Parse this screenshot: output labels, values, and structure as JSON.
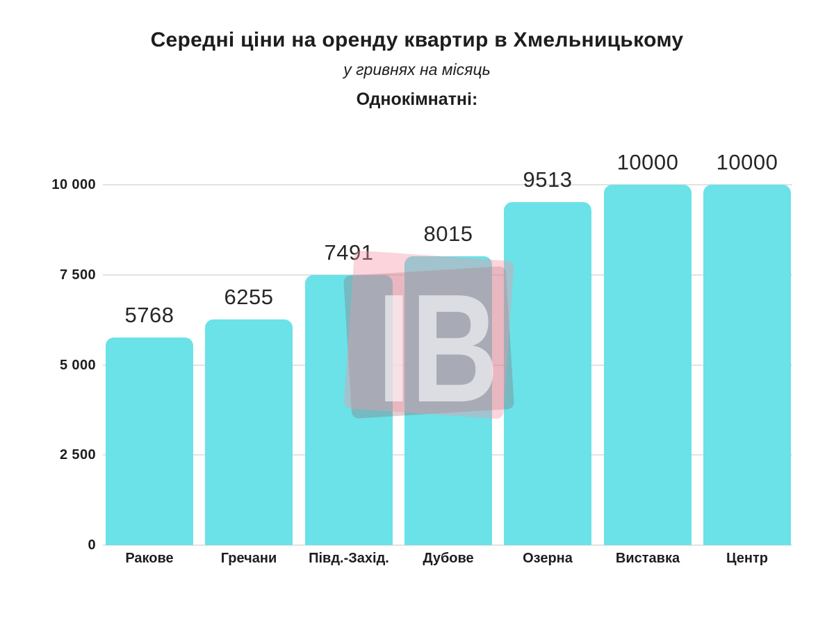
{
  "header": {
    "title": "Середні ціни на оренду квартир в Хмельницькому",
    "subtitle": "у гривнях на місяць",
    "group_label": "Однокімнатні:"
  },
  "chart_data": {
    "type": "bar",
    "title": "Середні ціни на оренду квартир в Хмельницькому",
    "subtitle": "у гривнях на місяць",
    "group_label": "Однокімнатні:",
    "categories": [
      "Ракове",
      "Гречани",
      "Півд.-Захід.",
      "Дубове",
      "Озерна",
      "Виставка",
      "Центр"
    ],
    "values": [
      5768,
      6255,
      7491,
      8015,
      9513,
      10000,
      10000
    ],
    "value_labels": [
      "5768",
      "6255",
      "7491",
      "8015",
      "9513",
      "10000",
      "10000"
    ],
    "ylim": [
      0,
      10000
    ],
    "y_ticks": [
      {
        "value": 10000,
        "label": "10 000"
      },
      {
        "value": 7500,
        "label": "7 500"
      },
      {
        "value": 5000,
        "label": "5 000"
      },
      {
        "value": 2500,
        "label": "2 500"
      },
      {
        "value": 0,
        "label": "0"
      }
    ],
    "grid": true,
    "legend": false,
    "xlabel": "",
    "ylabel": "",
    "bar_color": "#6AE2E8",
    "gridline_color": "#E3E3E3",
    "text_color": "#1D1D1D",
    "background_color": "#FFFFFF"
  },
  "watermark": {
    "text": "ІВ",
    "frame_back_color": "rgba(150,80,95,0.28)",
    "frame_front_color": "rgba(245,150,165,0.40)",
    "letter_color": "rgba(255,255,255,0.60)"
  }
}
